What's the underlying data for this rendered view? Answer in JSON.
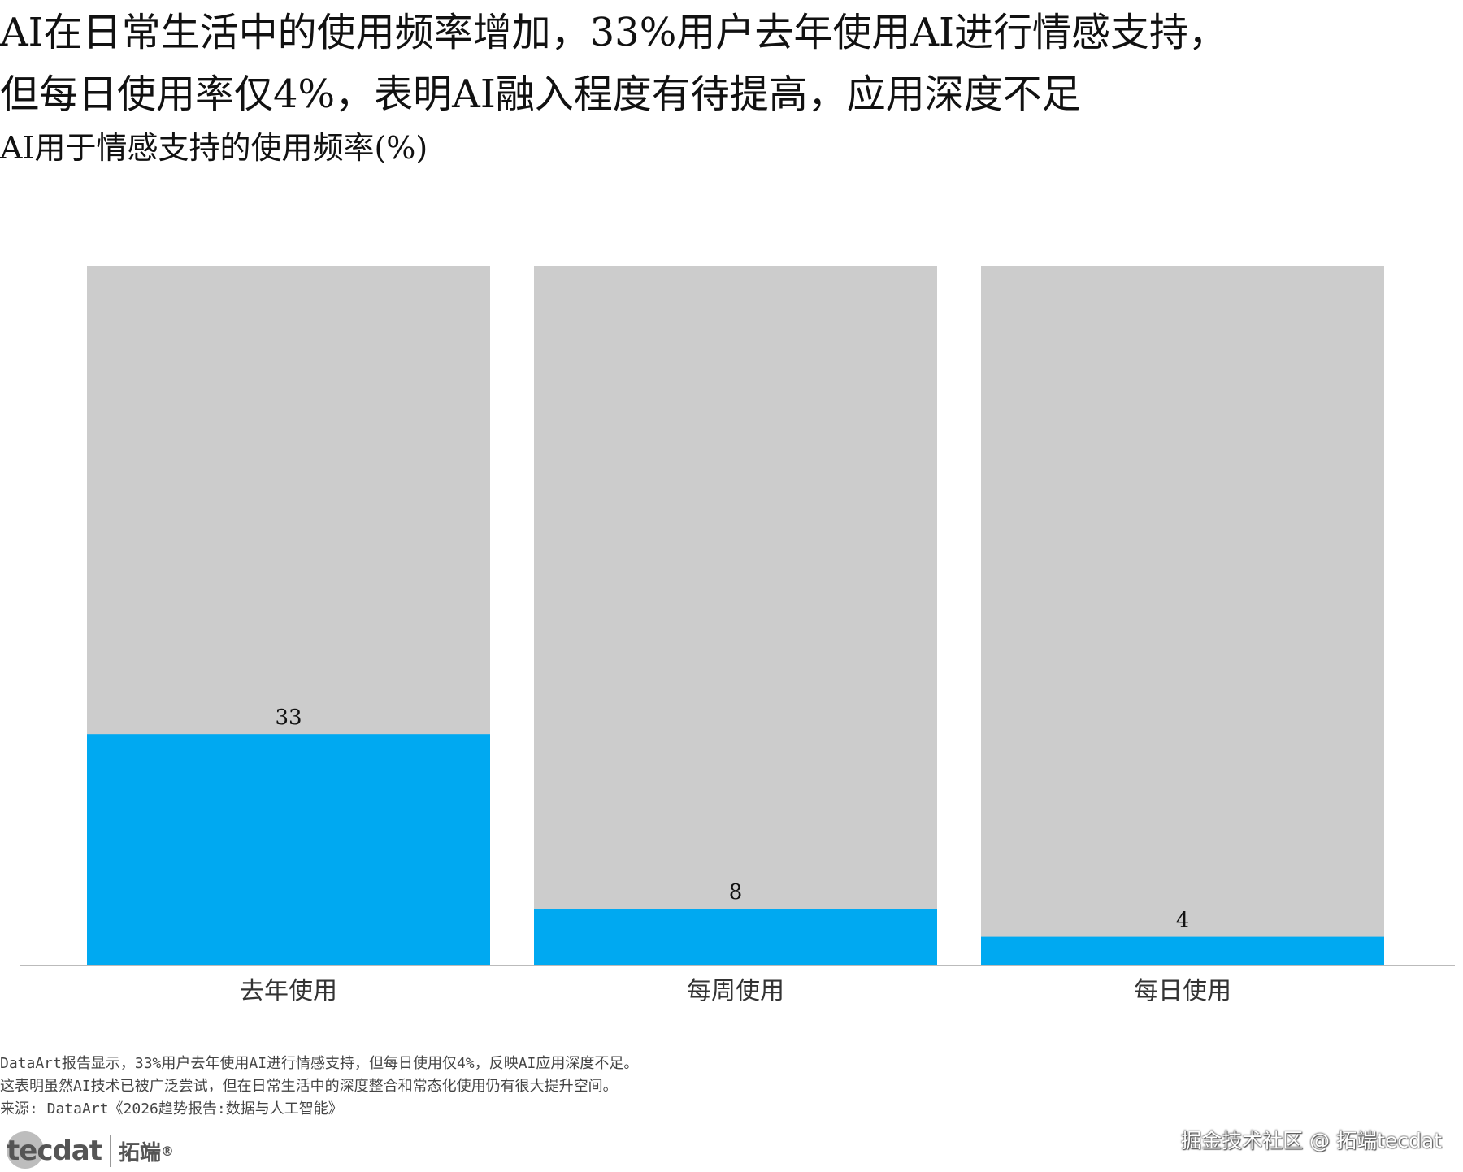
{
  "title_line1": "AI在日常生活中的使用频率增加，33%用户去年使用AI进行情感支持，",
  "title_line2": "但每日使用率仅4%，表明AI融入程度有待提高，应用深度不足",
  "subtitle": "AI用于情感支持的使用频率(%)",
  "notes": [
    "DataArt报告显示，33%用户去年使用AI进行情感支持，但每日使用仅4%，反映AI应用深度不足。",
    "这表明虽然AI技术已被广泛尝试，但在日常生活中的深度整合和常态化使用仍有很大提升空间。",
    "来源: DataArt《2026趋势报告:数据与人工智能》"
  ],
  "logo": {
    "text": "tecdat",
    "cn": "拓端",
    "reg": "®"
  },
  "watermark": "掘金技术社区 @ 拓端tecdat",
  "colors": {
    "bar": "#00a9f1",
    "background_bar": "#cccccc",
    "axis": "#bbbbbb"
  },
  "chart_data": {
    "type": "bar",
    "categories": [
      "去年使用",
      "每周使用",
      "每日使用"
    ],
    "values": [
      33,
      8,
      4
    ],
    "data_labels": [
      "33",
      "8",
      "4"
    ],
    "ylim": [
      0,
      100
    ],
    "background_bar_value": 100,
    "grid": false,
    "legend": "none"
  }
}
